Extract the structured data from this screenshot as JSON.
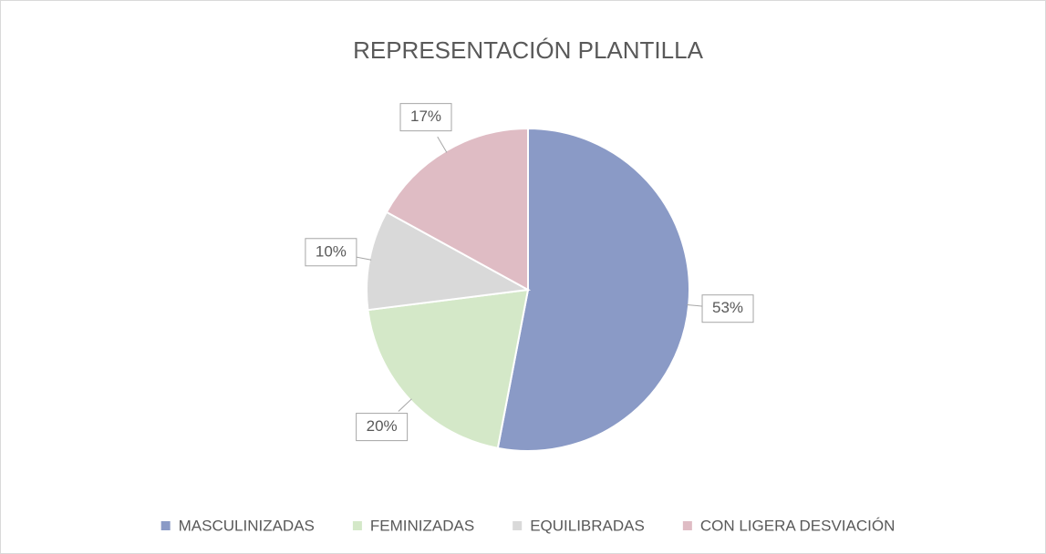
{
  "chart_data": {
    "type": "pie",
    "title": "REPRESENTACIÓN PLANTILLA",
    "categories": [
      "MASCULINIZADAS",
      "FEMINIZADAS",
      "EQUILIBRADAS",
      "CON LIGERA DESVIACIÓN"
    ],
    "values": [
      53,
      20,
      10,
      17
    ],
    "value_labels": [
      "53%",
      "20%",
      "10%",
      "17%"
    ],
    "colors": [
      "#8a9ac6",
      "#d4e8c8",
      "#d9d9d9",
      "#dfbcc4"
    ],
    "legend": "bottom"
  }
}
